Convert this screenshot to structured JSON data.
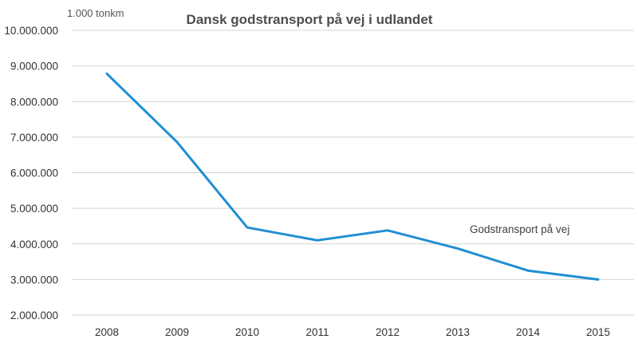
{
  "chart_data": {
    "type": "line",
    "title": "Dansk godstransport på vej i udlandet",
    "unit_label": "1.000 tonkm",
    "xlabel": "",
    "ylabel": "",
    "categories": [
      "2008",
      "2009",
      "2010",
      "2011",
      "2012",
      "2013",
      "2014",
      "2015"
    ],
    "series": [
      {
        "name": "Godstransport på vej",
        "values": [
          8780000,
          6860000,
          4460000,
          4100000,
          4380000,
          3870000,
          3250000,
          3000000
        ],
        "color": "#1f8fd3"
      }
    ],
    "ylim": [
      2000000,
      10000000
    ],
    "yticks": [
      2000000,
      3000000,
      4000000,
      5000000,
      6000000,
      7000000,
      8000000,
      9000000,
      10000000
    ],
    "ytick_labels": [
      "2.000.000",
      "3.000.000",
      "4.000.000",
      "5.000.000",
      "6.000.000",
      "7.000.000",
      "8.000.000",
      "9.000.000",
      "10.000.000"
    ],
    "grid": true,
    "legend": "inline-label"
  }
}
